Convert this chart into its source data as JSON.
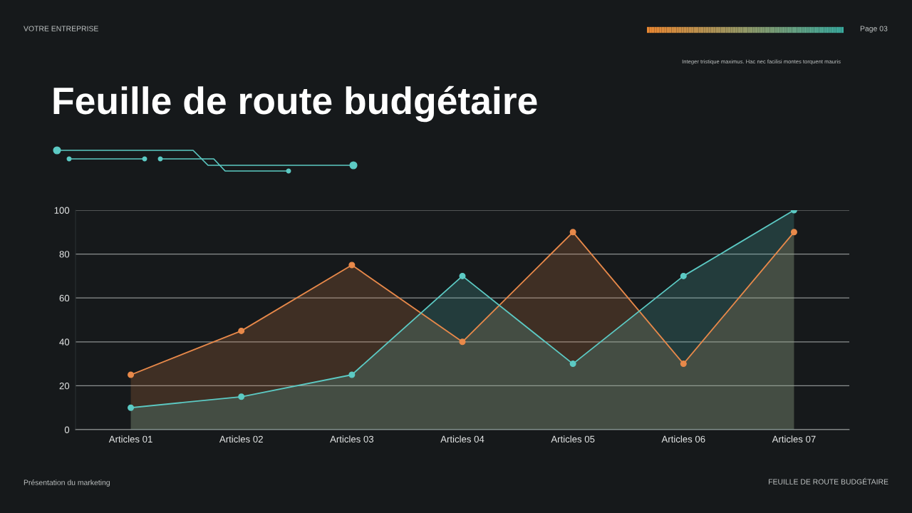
{
  "chart_data": {
    "type": "area",
    "title": "Feuille de route budgétaire",
    "annotations": [
      "VOTRE ENTREPRISE",
      "Page 03",
      "Integer tristique maximus. Hac nec facilisi montes torquent mauris",
      "Présentation du marketing",
      "FEUILLE DE ROUTE BUDGÉTAIRE"
    ],
    "categories": [
      "Articles 01",
      "Articles 02",
      "Articles 03",
      "Articles 04",
      "Articles 05",
      "Articles 06",
      "Articles 07"
    ],
    "series": [
      {
        "color": "#e8894a",
        "values": [
          25,
          45,
          75,
          40,
          90,
          30,
          90
        ]
      },
      {
        "color": "#5ccac4",
        "values": [
          10,
          15,
          25,
          70,
          30,
          70,
          100
        ]
      }
    ],
    "ylim": [
      0,
      100
    ],
    "yticks": [
      0,
      20,
      40,
      60,
      80,
      100
    ],
    "grid": "y",
    "marker": "circle",
    "line_style": "solid"
  }
}
